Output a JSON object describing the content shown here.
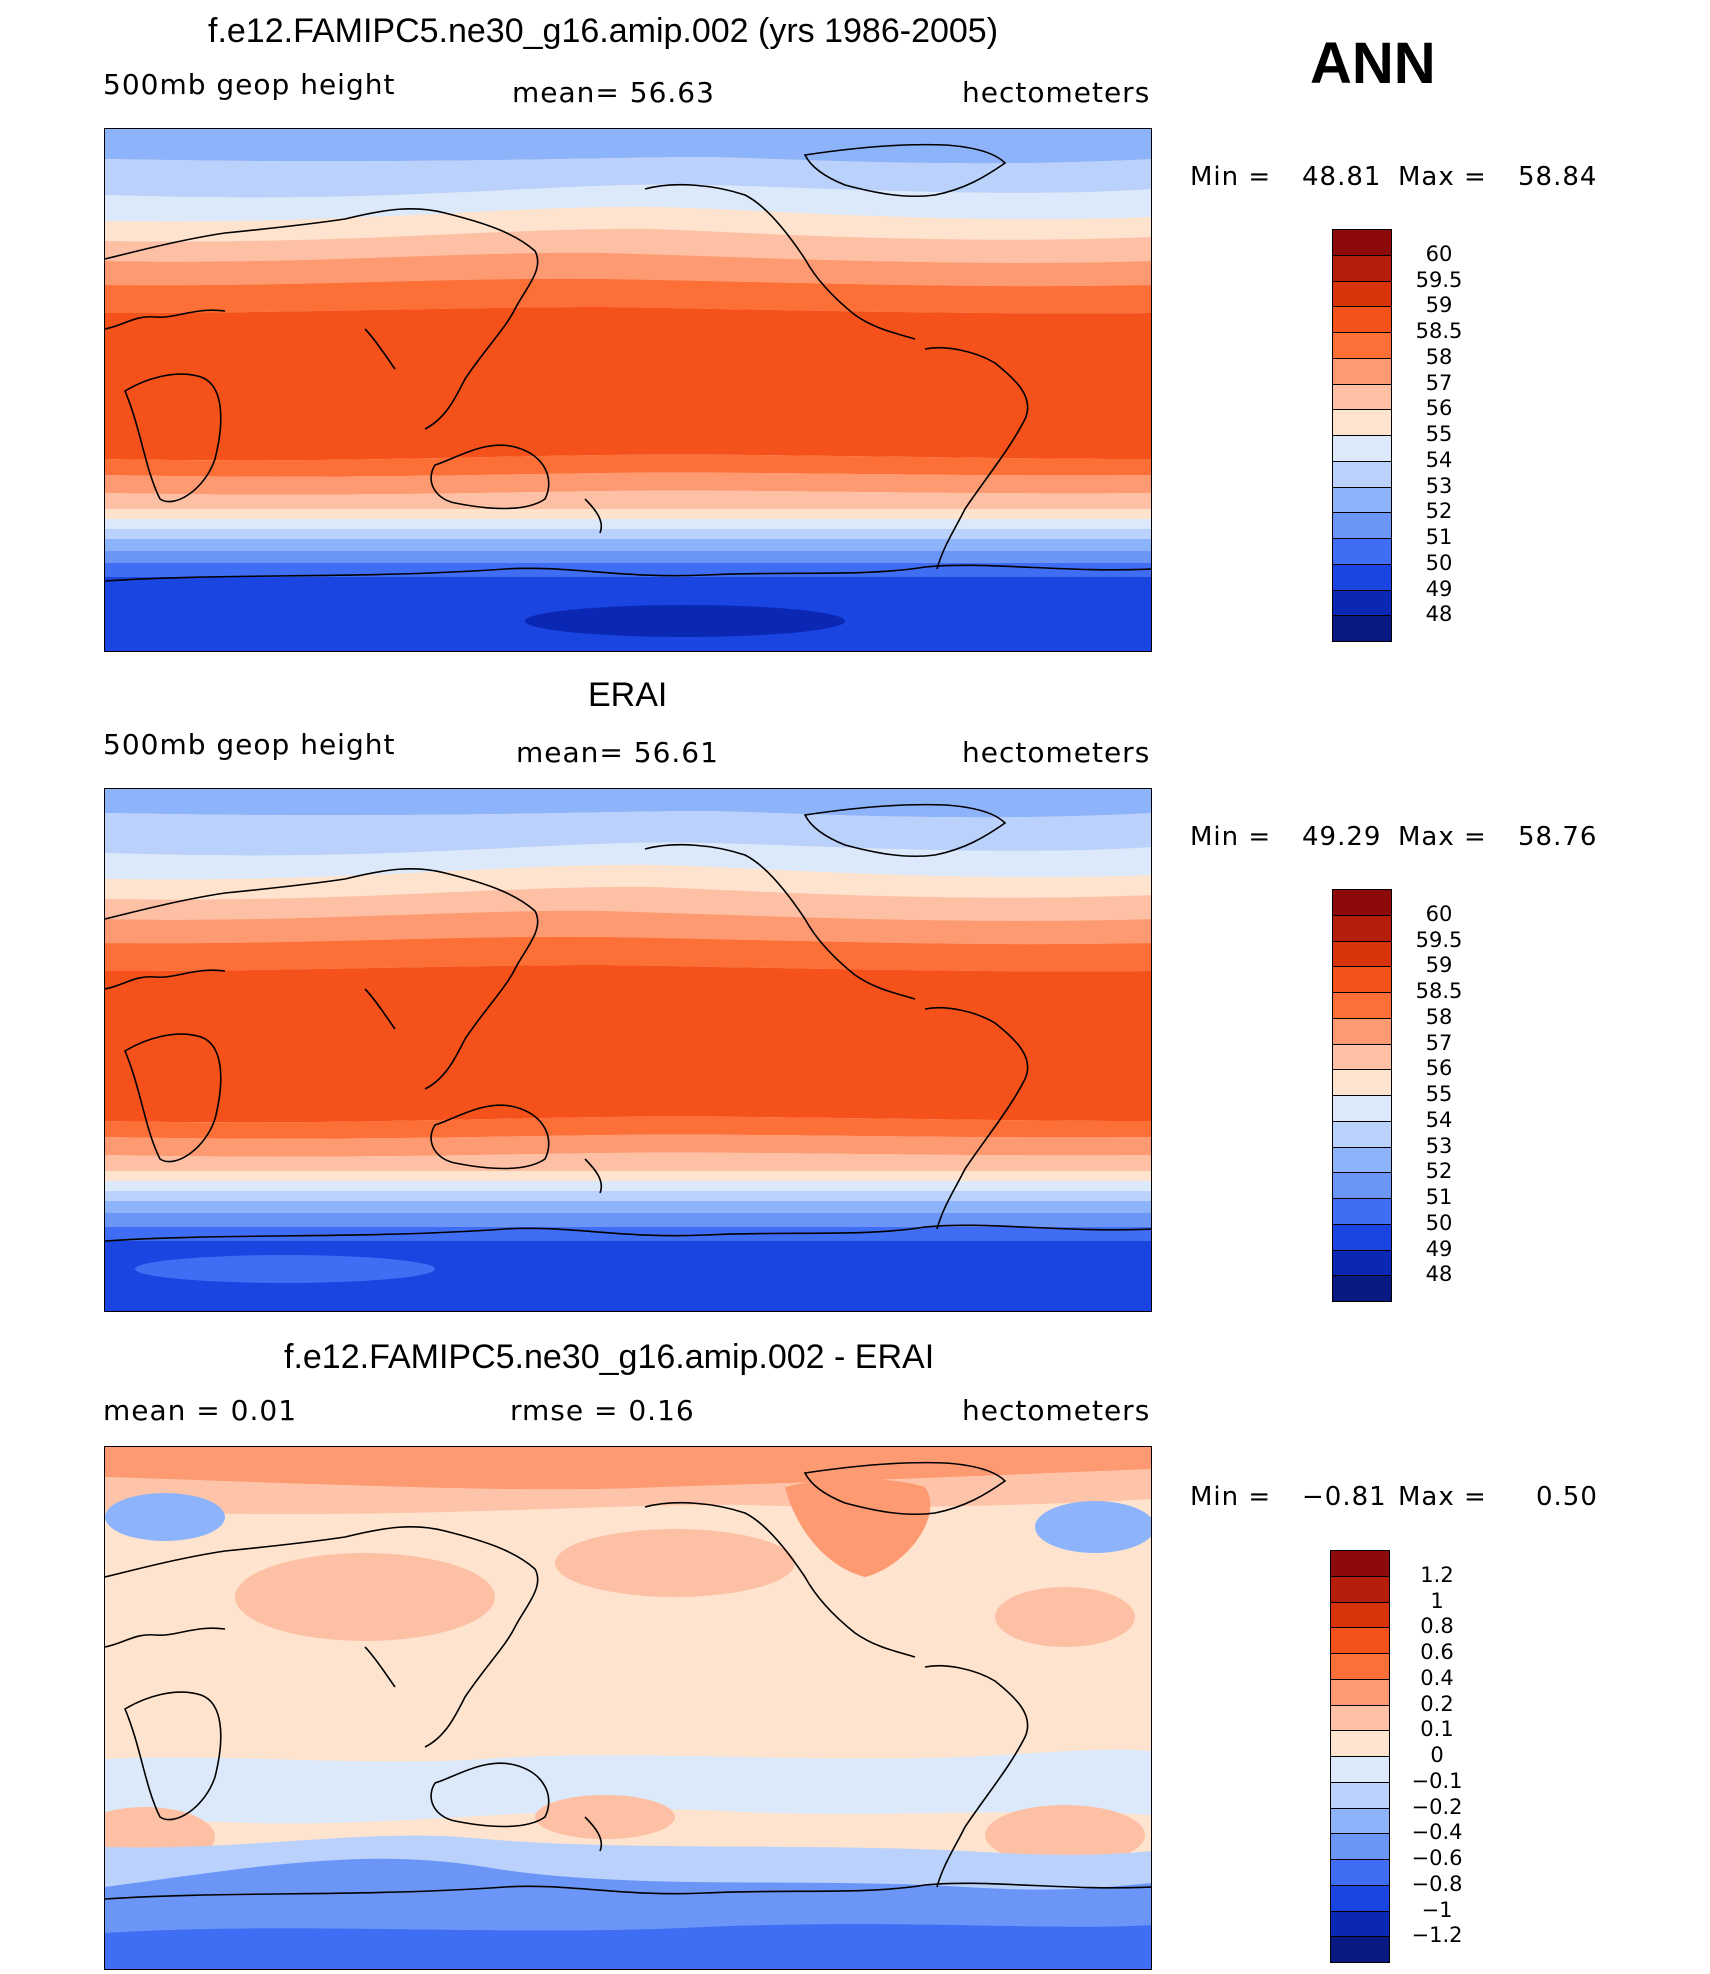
{
  "season": "ANN",
  "panels": [
    {
      "title": "f.e12.FAMIPC5.ne30_g16.amip.002 (yrs 1986-2005)",
      "left_label": "500mb  geop  height",
      "center_label": "mean=   56.63",
      "units": "hectometers",
      "min_label": "Min  =",
      "min_value": "48.81",
      "max_label": "Max  =",
      "max_value": "58.84",
      "colorbar": {
        "labels": [
          "60",
          "59.5",
          "59",
          "58.5",
          "58",
          "57",
          "56",
          "55",
          "54",
          "53",
          "52",
          "51",
          "50",
          "49",
          "48"
        ],
        "colors": [
          "#8c0a0a",
          "#b51e0b",
          "#d9330c",
          "#f4511b",
          "#fc6f36",
          "#fd9a72",
          "#fec0a4",
          "#fee4cf",
          "#dbe9fb",
          "#b9d1fb",
          "#8db3fb",
          "#6b96f8",
          "#3f6df3",
          "#1a45e0",
          "#0a28b4",
          "#081a82"
        ]
      }
    },
    {
      "title": "ERAI",
      "left_label": "500mb  geop  height",
      "center_label": "mean=   56.61",
      "units": "hectometers",
      "min_label": "Min  =",
      "min_value": "49.29",
      "max_label": "Max  =",
      "max_value": "58.76",
      "colorbar": {
        "labels": [
          "60",
          "59.5",
          "59",
          "58.5",
          "58",
          "57",
          "56",
          "55",
          "54",
          "53",
          "52",
          "51",
          "50",
          "49",
          "48"
        ],
        "colors": [
          "#8c0a0a",
          "#b51e0b",
          "#d9330c",
          "#f4511b",
          "#fc6f36",
          "#fd9a72",
          "#fec0a4",
          "#fee4cf",
          "#dbe9fb",
          "#b9d1fb",
          "#8db3fb",
          "#6b96f8",
          "#3f6df3",
          "#1a45e0",
          "#0a28b4",
          "#081a82"
        ]
      }
    },
    {
      "title": "f.e12.FAMIPC5.ne30_g16.amip.002 - ERAI",
      "left_label": "mean  =     0.01",
      "center_label": "rmse  =     0.16",
      "units": "hectometers",
      "min_label": "Min  =",
      "min_value": "−0.81",
      "max_label": "Max  =",
      "max_value": "0.50",
      "colorbar": {
        "labels": [
          "1.2",
          "1",
          "0.8",
          "0.6",
          "0.4",
          "0.2",
          "0.1",
          "0",
          "−0.1",
          "−0.2",
          "−0.4",
          "−0.6",
          "−0.8",
          "−1",
          "−1.2"
        ],
        "colors": [
          "#8c0a0a",
          "#b51e0b",
          "#d9330c",
          "#f4511b",
          "#fc6f36",
          "#fd9a72",
          "#fec0a4",
          "#fee4cf",
          "#dbe9fb",
          "#b9d1fb",
          "#8db3fb",
          "#6b96f8",
          "#3f6df3",
          "#1a45e0",
          "#0a28b4",
          "#081a82"
        ]
      }
    }
  ]
}
